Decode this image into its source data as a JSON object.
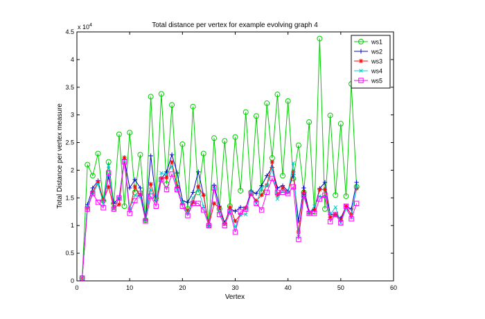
{
  "chart_data": {
    "type": "line",
    "title": "Total distance per vertex for example evolving graph 4",
    "xlabel": "Vertex",
    "ylabel": "Total Distance per vertex measure",
    "y_multiplier_label": "x 10",
    "y_multiplier_exp": "4",
    "xlim": [
      0,
      60
    ],
    "ylim": [
      0,
      4.5
    ],
    "xticks": [
      0,
      10,
      20,
      30,
      40,
      50,
      60
    ],
    "yticks": [
      0,
      0.5,
      1,
      1.5,
      2,
      2.5,
      3,
      3.5,
      4,
      4.5
    ],
    "ytick_labels": [
      "0",
      "0.5",
      "1",
      "1.5",
      "2",
      "2.5",
      "3",
      "3.5",
      "4",
      "4.5"
    ],
    "grid": false,
    "legend_position": "top-right",
    "x": [
      1,
      2,
      3,
      4,
      5,
      6,
      7,
      8,
      9,
      10,
      11,
      12,
      13,
      14,
      15,
      16,
      17,
      18,
      19,
      20,
      21,
      22,
      23,
      24,
      25,
      26,
      27,
      28,
      29,
      30,
      31,
      32,
      33,
      34,
      35,
      36,
      37,
      38,
      39,
      40,
      41,
      42,
      43,
      44,
      45,
      46,
      47,
      48,
      49,
      50,
      51,
      52,
      53
    ],
    "series": [
      {
        "name": "ws1",
        "color": "#00cc00",
        "marker": "circle",
        "values": [
          0.05,
          2.1,
          1.9,
          2.3,
          1.45,
          2.15,
          1.4,
          2.65,
          1.35,
          2.68,
          1.6,
          2.28,
          1.1,
          3.33,
          1.5,
          3.38,
          1.75,
          3.18,
          1.65,
          2.47,
          1.3,
          3.15,
          1.6,
          2.3,
          1.0,
          2.58,
          1.3,
          2.53,
          1.35,
          2.6,
          1.63,
          3.05,
          1.6,
          2.98,
          1.6,
          3.21,
          2.22,
          3.37,
          1.9,
          3.25,
          1.85,
          2.45,
          1.6,
          2.87,
          1.25,
          4.38,
          1.3,
          2.99,
          1.55,
          2.84,
          1.53,
          3.56,
          1.7
        ]
      },
      {
        "name": "ws2",
        "color": "#0000cc",
        "marker": "plus",
        "values": [
          0.05,
          1.38,
          1.68,
          1.81,
          1.45,
          1.88,
          1.4,
          1.5,
          2.2,
          1.68,
          1.83,
          1.68,
          1.1,
          2.26,
          1.45,
          1.85,
          1.97,
          2.28,
          1.95,
          1.45,
          1.42,
          1.6,
          1.97,
          1.55,
          1.0,
          1.73,
          1.35,
          1.05,
          1.3,
          1.26,
          1.33,
          1.32,
          1.62,
          1.58,
          1.72,
          1.9,
          2.05,
          1.68,
          1.72,
          1.62,
          1.92,
          1.08,
          1.68,
          1.25,
          1.3,
          1.67,
          1.78,
          1.2,
          1.2,
          1.13,
          1.35,
          1.3,
          1.78
        ]
      },
      {
        "name": "ws3",
        "color": "#ff0000",
        "marker": "star",
        "values": [
          0.05,
          1.32,
          1.6,
          1.79,
          1.45,
          1.7,
          1.32,
          1.38,
          2.23,
          1.3,
          1.7,
          1.55,
          1.1,
          1.75,
          1.45,
          1.85,
          1.87,
          2.15,
          1.7,
          1.4,
          1.27,
          1.42,
          1.7,
          1.55,
          1.0,
          1.4,
          1.32,
          1.03,
          1.33,
          1.08,
          1.2,
          1.32,
          1.57,
          1.45,
          1.55,
          1.73,
          2.15,
          1.55,
          1.68,
          1.6,
          1.97,
          0.88,
          1.6,
          1.22,
          1.28,
          1.65,
          1.65,
          1.15,
          1.2,
          1.1,
          1.35,
          1.2,
          1.67
        ]
      },
      {
        "name": "ws4",
        "color": "#00cccc",
        "marker": "x",
        "values": [
          0.05,
          1.35,
          1.57,
          1.75,
          1.4,
          2.08,
          1.3,
          1.5,
          2.17,
          1.3,
          1.55,
          1.52,
          1.1,
          1.65,
          1.45,
          1.95,
          1.93,
          2.07,
          1.65,
          1.42,
          1.22,
          1.5,
          1.65,
          1.35,
          1.0,
          1.67,
          1.25,
          1.02,
          1.28,
          0.97,
          1.2,
          1.2,
          1.6,
          1.4,
          1.68,
          1.72,
          2.03,
          1.48,
          1.63,
          1.6,
          2.13,
          0.8,
          1.52,
          1.22,
          1.35,
          1.53,
          1.52,
          1.2,
          1.33,
          1.05,
          1.3,
          1.15,
          1.7
        ]
      },
      {
        "name": "ws5",
        "color": "#ff00ff",
        "marker": "square",
        "values": [
          0.05,
          1.3,
          1.58,
          1.42,
          1.32,
          1.95,
          1.3,
          1.5,
          2.15,
          1.22,
          1.45,
          1.58,
          1.08,
          1.53,
          1.35,
          1.83,
          1.65,
          1.93,
          1.65,
          1.35,
          1.18,
          1.4,
          1.4,
          1.28,
          1.0,
          1.68,
          1.2,
          1.0,
          1.25,
          0.88,
          1.25,
          1.3,
          1.58,
          1.4,
          1.28,
          1.6,
          1.85,
          1.6,
          1.6,
          1.58,
          1.7,
          0.75,
          1.55,
          1.22,
          1.22,
          1.48,
          1.55,
          1.07,
          1.2,
          1.05,
          1.35,
          1.12,
          1.4
        ]
      }
    ]
  }
}
